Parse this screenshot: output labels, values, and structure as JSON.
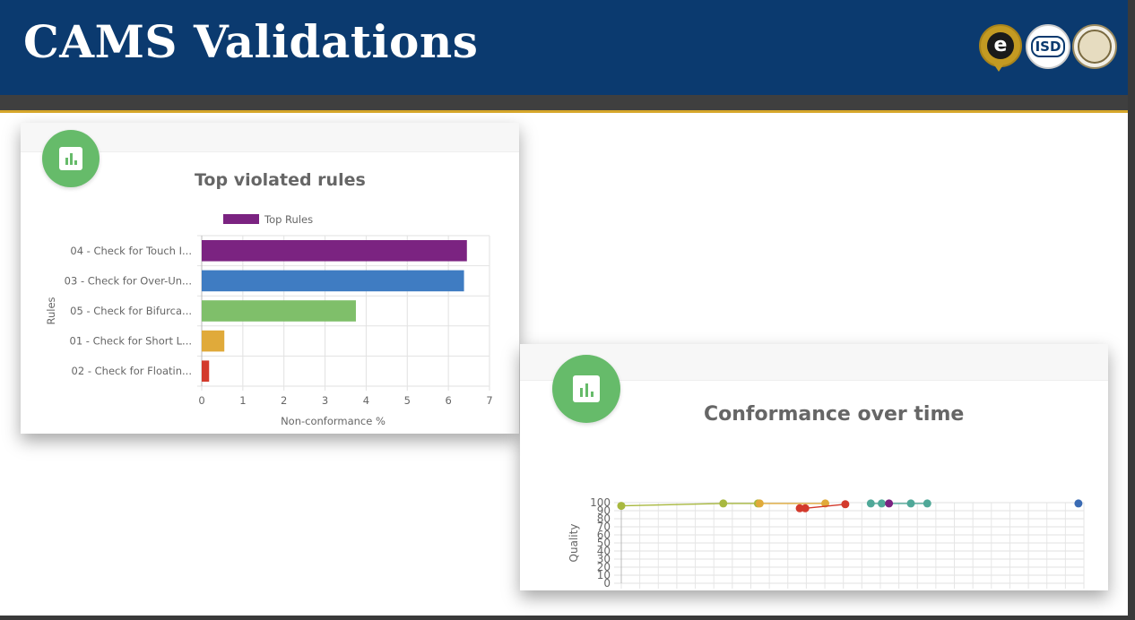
{
  "slide": {
    "title": "CAMS Validations",
    "logos": [
      {
        "name": "e-logo",
        "text": "e"
      },
      {
        "name": "isd-logo",
        "text": "ISD"
      },
      {
        "name": "county-seal-logo"
      }
    ]
  },
  "colors": {
    "header_bg": "#0b3a6f",
    "accent_gold": "#d6a72b",
    "badge_green": "#66bb6a"
  },
  "chart_data": [
    {
      "type": "bar",
      "orientation": "horizontal",
      "title": "Top violated rules",
      "xlabel": "Non-conformance %",
      "ylabel": "Rules",
      "xlim": [
        0,
        7
      ],
      "xticks": [
        "0",
        "1",
        "2",
        "3",
        "4",
        "5",
        "6",
        "7"
      ],
      "legend": {
        "position": "top",
        "label": "Top Rules"
      },
      "grid": true,
      "categories": [
        "04 - Check for Touch I...",
        "03 - Check for Over-Un...",
        "05 - Check for Bifurca...",
        "01 - Check for Short L...",
        "02 - Check for Floatin..."
      ],
      "values": [
        6.45,
        6.38,
        3.75,
        0.55,
        0.18
      ],
      "bar_colors": [
        "#7b2381",
        "#3f7cc2",
        "#7fbf6a",
        "#e0aa3a",
        "#d33a2c"
      ]
    },
    {
      "type": "line",
      "title": "Conformance over time",
      "ylabel": "Quality",
      "ylim": [
        0,
        100
      ],
      "yticks": [
        "0",
        "10",
        "20",
        "30",
        "40",
        "50",
        "60",
        "70",
        "80",
        "90",
        "100"
      ],
      "grid": true,
      "xlim": [
        0,
        12.7
      ],
      "series": [
        {
          "color": "#a8b83f",
          "points": [
            {
              "x": 0,
              "y": 96
            },
            {
              "x": 2.8,
              "y": 99
            },
            {
              "x": 3.75,
              "y": 99
            }
          ]
        },
        {
          "color": "#e0aa3a",
          "points": [
            {
              "x": 3.8,
              "y": 99
            },
            {
              "x": 5.6,
              "y": 99
            }
          ]
        },
        {
          "color": "#d33a2c",
          "points": [
            {
              "x": 4.9,
              "y": 93
            },
            {
              "x": 5.05,
              "y": 93
            },
            {
              "x": 6.15,
              "y": 98
            }
          ]
        },
        {
          "color": "#4fa898",
          "points": [
            {
              "x": 6.85,
              "y": 99
            },
            {
              "x": 7.15,
              "y": 99
            },
            {
              "x": 7.95,
              "y": 99
            },
            {
              "x": 8.4,
              "y": 99
            }
          ]
        },
        {
          "color": "#7b2381",
          "points": [
            {
              "x": 7.35,
              "y": 99
            }
          ]
        },
        {
          "color": "#3a6bb3",
          "points": [
            {
              "x": 12.55,
              "y": 99
            }
          ]
        }
      ]
    }
  ]
}
